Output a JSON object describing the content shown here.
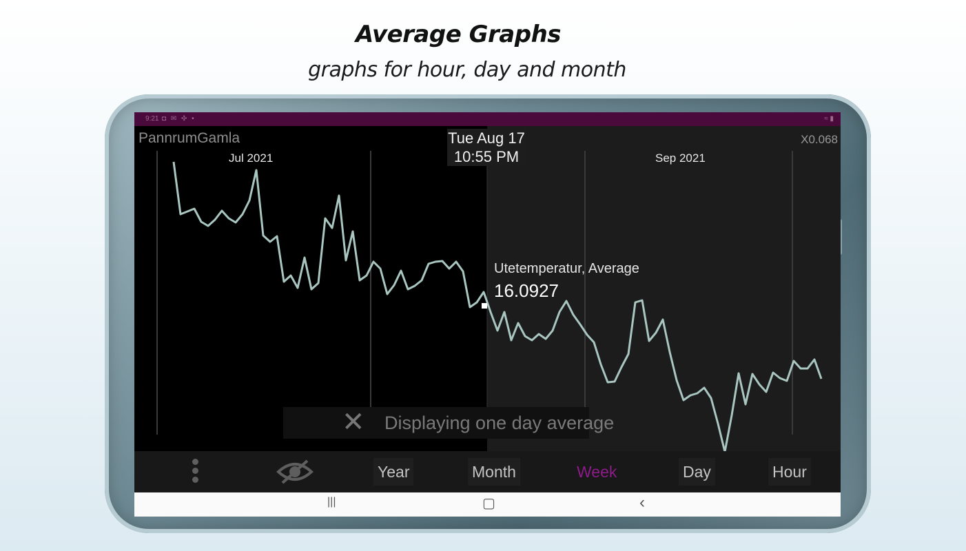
{
  "promo": {
    "title": "Average Graphs",
    "subtitle": "graphs for hour, day and month"
  },
  "status_bar": {
    "time": "9:21",
    "icons": "◘ ✉ ✣ •",
    "right_icons": "≈ ▮"
  },
  "graph": {
    "sensor_name": "PannrumGamla",
    "zoom": "X0.068",
    "cursor_date": "Tue Aug 17",
    "cursor_time": "10:55 PM",
    "month_labels": [
      "Jul 2021",
      "Sep 2021"
    ],
    "value_series": "Utetemperatur, Average",
    "value_number": "16.0927",
    "hint_icon": "close-icon",
    "hint": "Displaying one day average",
    "line_color": "#a9c6c1"
  },
  "toolbar": {
    "menu_icon": "more-vertical-icon",
    "visibility_icon": "eye-off-icon",
    "year": "Year",
    "month": "Month",
    "week": "Week",
    "day": "Day",
    "hour": "Hour",
    "active": "Week",
    "active_color": "#8d1b8a"
  },
  "navbar": {
    "recents": "|||",
    "home": "▢",
    "back": "‹"
  }
}
